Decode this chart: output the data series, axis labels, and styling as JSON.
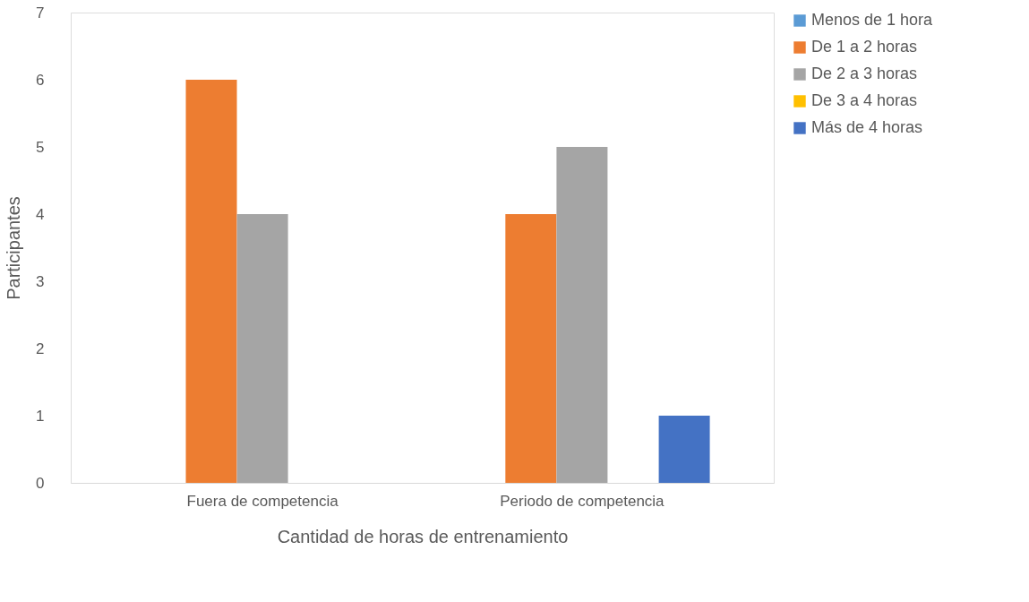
{
  "chart_data": {
    "type": "bar",
    "xlabel": "Cantidad de horas de entrenamiento",
    "ylabel": "Participantes",
    "categories": [
      "Fuera de competencia",
      "Periodo de competencia"
    ],
    "series": [
      {
        "name": "Menos de 1 hora",
        "color": "#5b9bd5",
        "values": [
          0,
          0
        ]
      },
      {
        "name": "De 1 a 2 horas",
        "color": "#ed7d31",
        "values": [
          6,
          4
        ]
      },
      {
        "name": "De 2 a 3 horas",
        "color": "#a5a5a5",
        "values": [
          4,
          5
        ]
      },
      {
        "name": "De 3 a 4 horas",
        "color": "#ffc000",
        "values": [
          0,
          0
        ]
      },
      {
        "name": "Más de 4 horas",
        "color": "#4472c4",
        "values": [
          0,
          1
        ]
      }
    ],
    "ylim": [
      0,
      7
    ],
    "yticks": [
      0,
      1,
      2,
      3,
      4,
      5,
      6,
      7
    ],
    "grid": false,
    "legend": "right"
  }
}
